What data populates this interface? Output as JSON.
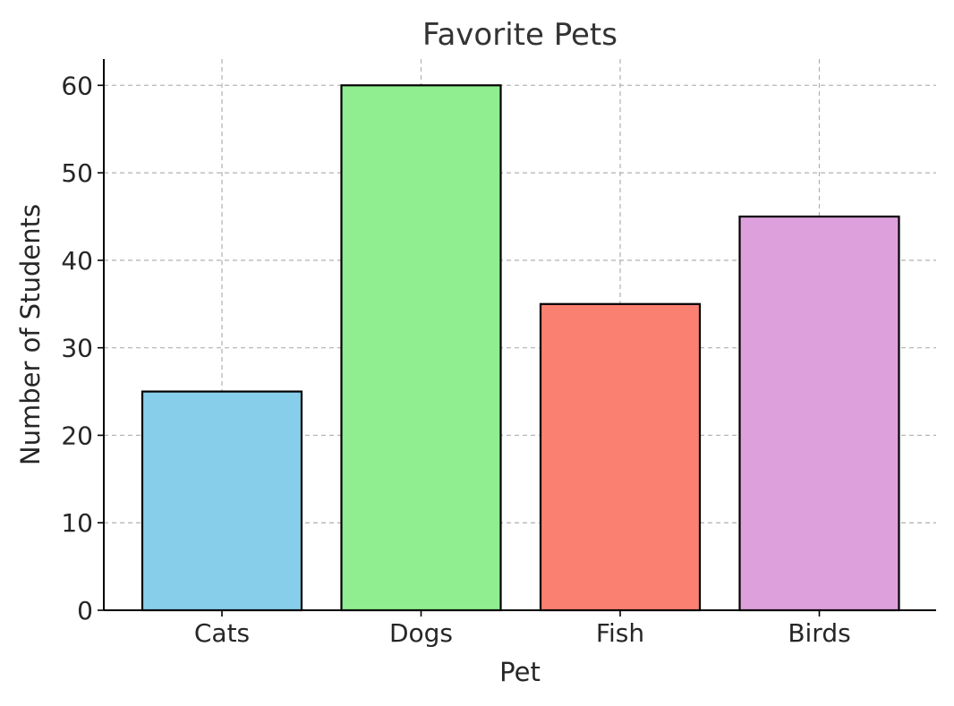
{
  "chart_data": {
    "type": "bar",
    "title": "Favorite Pets",
    "xlabel": "Pet",
    "ylabel": "Number of Students",
    "categories": [
      "Cats",
      "Dogs",
      "Fish",
      "Birds"
    ],
    "values": [
      25,
      60,
      35,
      45
    ],
    "colors": [
      "#87CEEB",
      "#90EE90",
      "#FA8072",
      "#DDA0DD"
    ],
    "ylim": [
      0,
      63
    ],
    "yticks": [
      0,
      10,
      20,
      30,
      40,
      50,
      60
    ],
    "grid": true,
    "legend": "none"
  }
}
